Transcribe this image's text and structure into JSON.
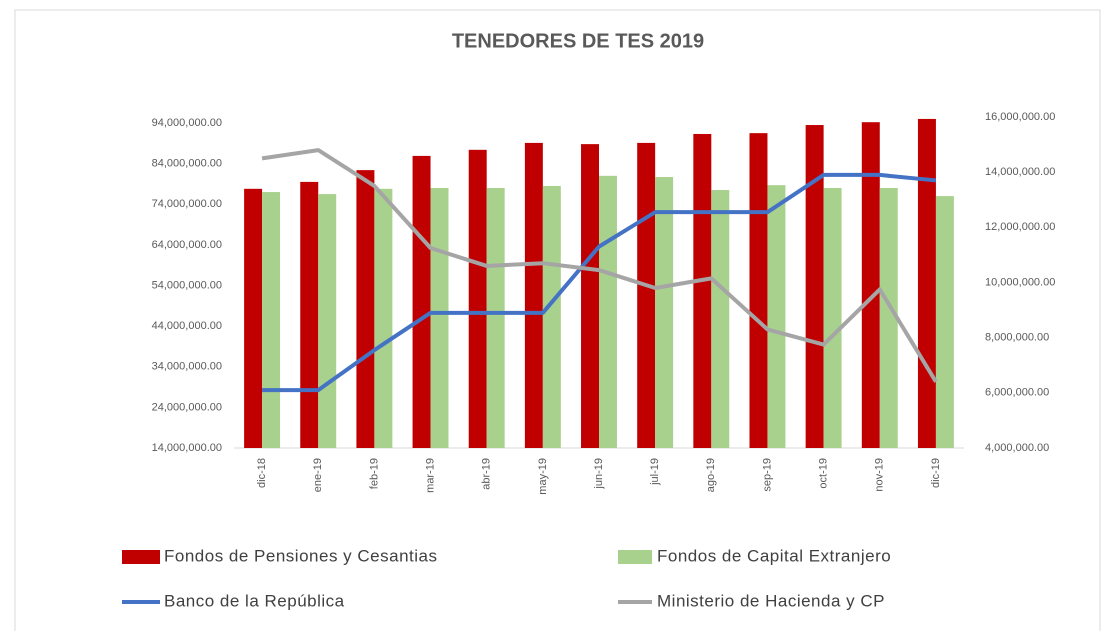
{
  "chart_data": {
    "type": "bar",
    "title": "TENEDORES DE TES 2019",
    "categories": [
      "dic-18",
      "ene-19",
      "feb-19",
      "mar-19",
      "abr-19",
      "may-19",
      "jun-19",
      "jul-19",
      "ago-19",
      "sep-19",
      "oct-19",
      "nov-19",
      "dic-19"
    ],
    "series": [
      {
        "name": "Fondos de Pensiones y Cesantias",
        "color": "#c00000",
        "type": "bar",
        "values": [
          77800000,
          79500000,
          82400000,
          85900000,
          87400000,
          89100000,
          88800000,
          89100000,
          91300000,
          91500000,
          93500000,
          94200000,
          95000000
        ]
      },
      {
        "name": "Fondos de Capital Extranjero",
        "color": "#a9d18e",
        "type": "bar",
        "values": [
          77000000,
          76500000,
          77800000,
          78000000,
          78000000,
          78500000,
          81000000,
          80700000,
          77500000,
          78700000,
          78000000,
          78000000,
          76000000
        ]
      },
      {
        "name": "Banco de la República",
        "color": "#4472c4",
        "type": "line",
        "axis": "y2",
        "values": [
          6100000,
          6100000,
          7550000,
          8900000,
          8900000,
          8900000,
          11300000,
          12550000,
          12550000,
          12550000,
          13900000,
          13900000,
          13700000
        ]
      },
      {
        "name": "Ministerio de Hacienda y CP",
        "color": "#a5a5a5",
        "type": "line",
        "axis": "y2",
        "values": [
          14500000,
          14800000,
          13500000,
          11250000,
          10600000,
          10700000,
          10450000,
          9800000,
          10150000,
          8300000,
          7750000,
          9750000,
          6400000
        ]
      }
    ],
    "ylim": [
      14000000,
      94000000
    ],
    "yticks": [
      {
        "value": 14000000,
        "label": "14,000,000.00"
      },
      {
        "value": 24000000,
        "label": "24,000,000.00"
      },
      {
        "value": 34000000,
        "label": "34,000,000.00"
      },
      {
        "value": 44000000,
        "label": "44,000,000.00"
      },
      {
        "value": 54000000,
        "label": "54,000,000.00"
      },
      {
        "value": 64000000,
        "label": "64,000,000.00"
      },
      {
        "value": 74000000,
        "label": "74,000,000.00"
      },
      {
        "value": 84000000,
        "label": "84,000,000.00"
      },
      {
        "value": 94000000,
        "label": "94,000,000.00"
      }
    ],
    "y2lim": [
      4000000,
      16000000
    ],
    "y2ticks": [
      {
        "value": 4000000,
        "label": "4,000,000.00"
      },
      {
        "value": 6000000,
        "label": "6,000,000.00"
      },
      {
        "value": 8000000,
        "label": "8,000,000.00"
      },
      {
        "value": 10000000,
        "label": "10,000,000.00"
      },
      {
        "value": 12000000,
        "label": "12,000,000.00"
      },
      {
        "value": 14000000,
        "label": "14,000,000.00"
      },
      {
        "value": 16000000,
        "label": "16,000,000.00"
      }
    ],
    "grid": false,
    "legend": "bottom"
  }
}
